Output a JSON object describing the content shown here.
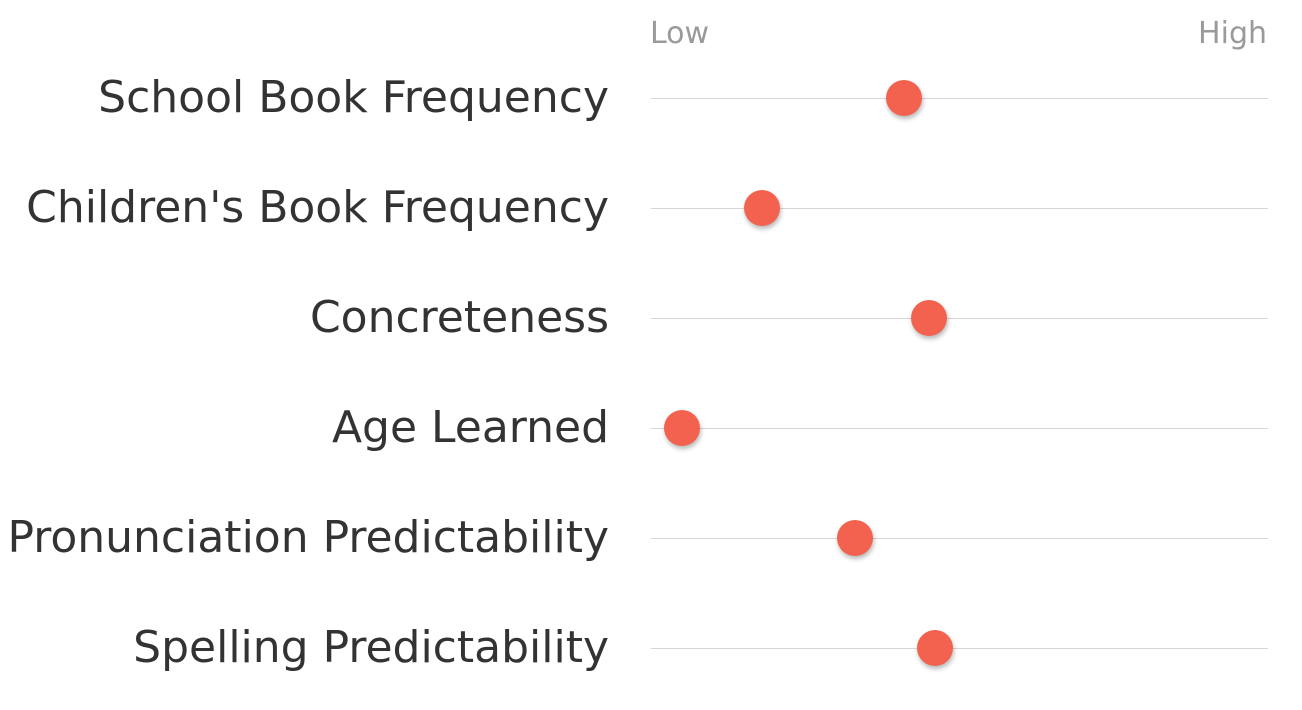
{
  "chart_data": {
    "type": "scatter",
    "title": "",
    "scale": {
      "low_label": "Low",
      "high_label": "High",
      "range": [
        0,
        1
      ]
    },
    "categories": [
      "School Book Frequency",
      "Children's Book Frequency",
      "Concreteness",
      "Age Learned",
      "Pronunciation Predictability",
      "Spelling Predictability"
    ],
    "series": [
      {
        "values": [
          0.41,
          0.18,
          0.45,
          0.05,
          0.33,
          0.46
        ],
        "color": "#f2624f"
      }
    ],
    "grid": true,
    "legend": "none"
  }
}
